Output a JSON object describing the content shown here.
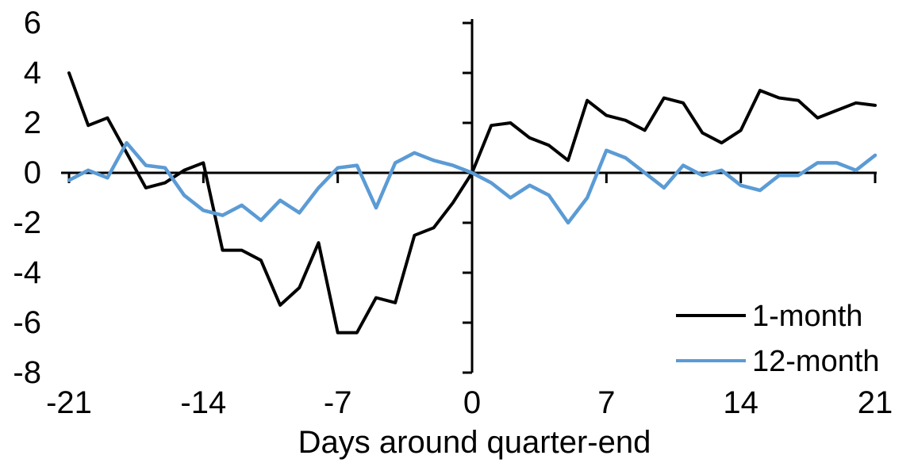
{
  "chart_data": {
    "type": "line",
    "title": "",
    "xlabel": "Days around quarter-end",
    "ylabel": "",
    "x_range": [
      -21,
      21
    ],
    "y_range": [
      -8,
      6
    ],
    "xticks": [
      -21,
      -14,
      -7,
      0,
      7,
      14,
      21
    ],
    "yticks": [
      6,
      4,
      2,
      0,
      -2,
      -4,
      -6,
      -8
    ],
    "grid": false,
    "legend_position": "inside-bottom-right",
    "axis_color": "#000000",
    "x": [
      -21,
      -20,
      -19,
      -18,
      -17,
      -16,
      -15,
      -14,
      -13,
      -12,
      -11,
      -10,
      -9,
      -8,
      -7,
      -6,
      -5,
      -4,
      -3,
      -2,
      -1,
      0,
      1,
      2,
      3,
      4,
      5,
      6,
      7,
      8,
      9,
      10,
      11,
      12,
      13,
      14,
      15,
      16,
      17,
      18,
      19,
      20,
      21
    ],
    "series": [
      {
        "name": "1-month",
        "color": "#000000",
        "values": [
          4.0,
          1.9,
          2.2,
          0.8,
          -0.6,
          -0.4,
          0.1,
          0.4,
          -3.1,
          -3.1,
          -3.5,
          -5.3,
          -4.6,
          -2.8,
          -6.4,
          -6.4,
          -5.0,
          -5.2,
          -2.5,
          -2.2,
          -1.2,
          0.0,
          1.9,
          2.0,
          1.4,
          1.1,
          0.5,
          2.9,
          2.3,
          2.1,
          1.7,
          3.0,
          2.8,
          1.6,
          1.2,
          1.7,
          3.3,
          3.0,
          2.9,
          2.2,
          2.5,
          2.8,
          2.7
        ]
      },
      {
        "name": "12-month",
        "color": "#5B9BD5",
        "values": [
          -0.3,
          0.1,
          -0.2,
          1.2,
          0.3,
          0.2,
          -0.9,
          -1.5,
          -1.7,
          -1.3,
          -1.9,
          -1.1,
          -1.6,
          -0.6,
          0.2,
          0.3,
          -1.4,
          0.4,
          0.8,
          0.5,
          0.3,
          0.0,
          -0.4,
          -1.0,
          -0.5,
          -0.9,
          -2.0,
          -1.0,
          0.9,
          0.6,
          0.0,
          -0.6,
          0.3,
          -0.1,
          0.1,
          -0.5,
          -0.7,
          -0.1,
          -0.1,
          0.4,
          0.4,
          0.1,
          0.7
        ]
      }
    ]
  }
}
